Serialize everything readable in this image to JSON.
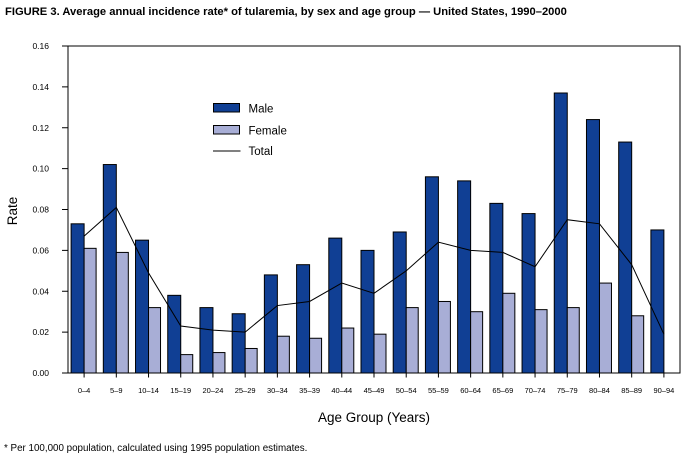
{
  "figure": {
    "title": "FIGURE 3. Average annual incidence rate* of tularemia, by sex and age group — United States, 1990–2000",
    "footnote": "* Per 100,000 population, calculated using 1995 population estimates."
  },
  "chart_data": {
    "type": "bar",
    "title": "FIGURE 3. Average annual incidence rate* of tularemia, by sex and age group — United States, 1990–2000",
    "xlabel": "Age Group (Years)",
    "ylabel": "Rate",
    "ylim": [
      0,
      0.16
    ],
    "ytick_step": 0.02,
    "yticks": [
      "0.00",
      "0.02",
      "0.04",
      "0.06",
      "0.08",
      "0.10",
      "0.12",
      "0.14",
      "0.16"
    ],
    "grid": false,
    "legend_position": "upper-left-inside",
    "legend": [
      "Male",
      "Female",
      "Total"
    ],
    "categories": [
      "0–4",
      "5–9",
      "10–14",
      "15–19",
      "20–24",
      "25–29",
      "30–34",
      "35–39",
      "40–44",
      "45–49",
      "50–54",
      "55–59",
      "60–64",
      "65–69",
      "70–74",
      "75–79",
      "80–84",
      "85–89",
      "90–94"
    ],
    "series": [
      {
        "name": "Male",
        "kind": "bar",
        "color": "#103f94",
        "values": [
          0.073,
          0.102,
          0.065,
          0.038,
          0.032,
          0.029,
          0.048,
          0.053,
          0.066,
          0.06,
          0.069,
          0.096,
          0.094,
          0.083,
          0.078,
          0.137,
          0.124,
          0.113,
          0.07
        ]
      },
      {
        "name": "Female",
        "kind": "bar",
        "color": "#a8aed6",
        "values": [
          0.061,
          0.059,
          0.032,
          0.009,
          0.01,
          0.012,
          0.018,
          0.017,
          0.022,
          0.019,
          0.032,
          0.035,
          0.03,
          0.039,
          0.031,
          0.032,
          0.044,
          0.028,
          0
        ]
      },
      {
        "name": "Total",
        "kind": "line",
        "color": "#000000",
        "values": [
          0.067,
          0.081,
          0.049,
          0.023,
          0.021,
          0.02,
          0.033,
          0.035,
          0.044,
          0.039,
          0.05,
          0.064,
          0.06,
          0.059,
          0.052,
          0.075,
          0.073,
          0.053,
          0.019
        ]
      }
    ],
    "footnote": "* Per 100,000 population, calculated using 1995 population estimates."
  }
}
